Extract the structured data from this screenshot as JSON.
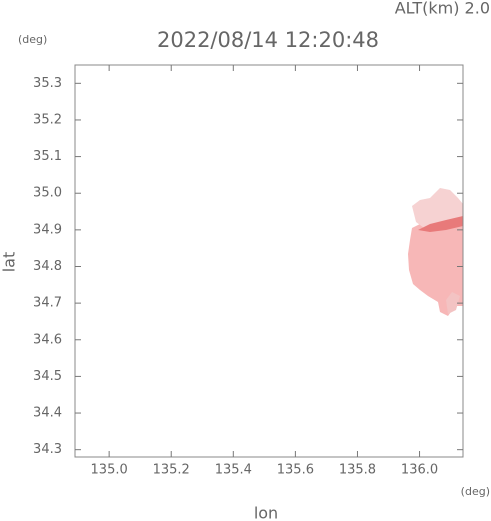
{
  "chart_data": {
    "type": "radar-map",
    "title": "2022/08/14 12:20:48",
    "subtitle": "ALT(km) 2.0",
    "x_label": "lon",
    "y_label": "lat",
    "x_unit": "(deg)",
    "y_unit": "(deg)",
    "xlim": [
      134.89,
      136.14
    ],
    "xticks": [
      {
        "value": 135.0,
        "label": "135.0"
      },
      135.2,
      135.4,
      135.6,
      135.8,
      {
        "value": 136.0,
        "label": "136.0"
      }
    ],
    "ylim": [
      34.28,
      35.35
    ],
    "yticks": [
      35.3,
      35.2,
      35.1,
      {
        "value": 35.0,
        "label": "35.0"
      },
      34.9,
      34.8,
      34.7,
      34.6,
      34.5,
      34.4,
      34.3
    ]
  }
}
